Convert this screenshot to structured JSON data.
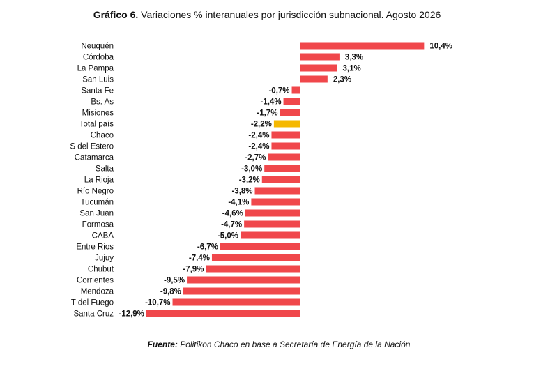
{
  "header": {
    "title_bold": "Gráfico 6.",
    "title_rest": " Variaciones % interanuales por jurisdicción subnacional. Agosto 2026"
  },
  "footer": {
    "source_bold": "Fuente:",
    "source_rest": " Politikon Chaco en base a Secretaría de Energía de la Nación"
  },
  "colors": {
    "bar": "#f0474b",
    "highlight": "#f5b800",
    "axis": "#222222"
  },
  "chart_data": {
    "type": "bar",
    "orientation": "horizontal",
    "title": "Variaciones % interanuales por jurisdicción subnacional. Agosto 2026",
    "highlight_category": "Total país",
    "categories": [
      "Neuquén",
      "Córdoba",
      "La Pampa",
      "San Luis",
      "Santa Fe",
      "Bs. As",
      "Misiones",
      "Total país",
      "Chaco",
      "S del Estero",
      "Catamarca",
      "Salta",
      "La Rioja",
      "Río Negro",
      "Tucumán",
      "San Juan",
      "Formosa",
      "CABA",
      "Entre Rios",
      "Jujuy",
      "Chubut",
      "Corrientes",
      "Mendoza",
      "T del Fuego",
      "Santa Cruz"
    ],
    "values": [
      10.4,
      3.3,
      3.1,
      2.3,
      -0.7,
      -1.4,
      -1.7,
      -2.2,
      -2.4,
      -2.4,
      -2.7,
      -3.0,
      -3.2,
      -3.8,
      -4.1,
      -4.6,
      -4.7,
      -5.0,
      -6.7,
      -7.4,
      -7.9,
      -9.5,
      -9.8,
      -10.7,
      -12.9
    ],
    "labels": [
      "10,4%",
      "3,3%",
      "3,1%",
      "2,3%",
      "-0,7%",
      "-1,4%",
      "-1,7%",
      "-2,2%",
      "-2,4%",
      "-2,4%",
      "-2,7%",
      "-3,0%",
      "-3,2%",
      "-3,8%",
      "-4,1%",
      "-4,6%",
      "-4,7%",
      "-5,0%",
      "-6,7%",
      "-7,4%",
      "-7,9%",
      "-9,5%",
      "-9,8%",
      "-10,7%",
      "-12,9%"
    ]
  }
}
